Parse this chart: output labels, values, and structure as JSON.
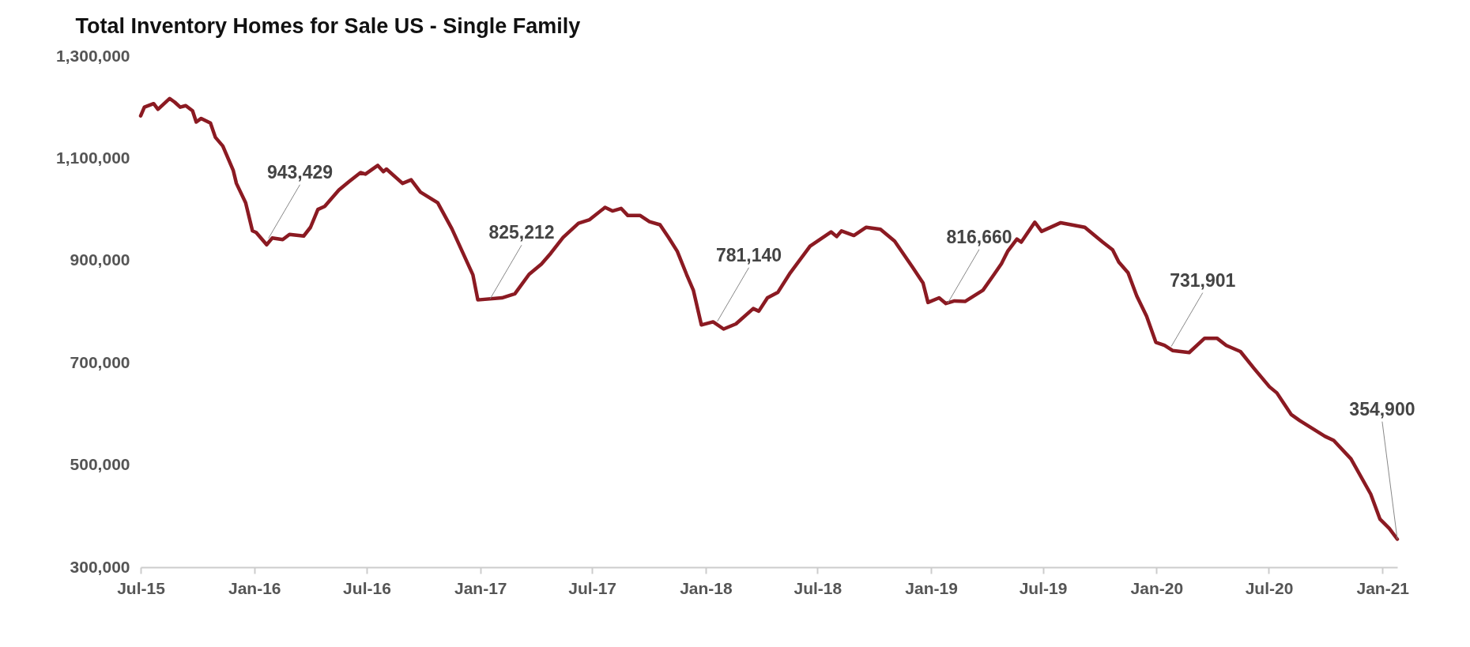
{
  "chart_data": {
    "type": "line",
    "title": "Total Inventory Homes for Sale US - Single Family",
    "x": [
      "2015-07-01",
      "2015-07-07",
      "2015-07-22",
      "2015-07-29",
      "2015-08-17",
      "2015-08-25",
      "2015-09-03",
      "2015-09-12",
      "2015-09-23",
      "2015-09-29",
      "2015-10-07",
      "2015-10-22",
      "2015-10-30",
      "2015-11-11",
      "2015-11-28",
      "2015-12-03",
      "2015-12-18",
      "2015-12-29",
      "2016-01-04",
      "2016-01-21",
      "2016-01-30",
      "2016-02-16",
      "2016-02-27",
      "2016-03-21",
      "2016-04-01",
      "2016-04-13",
      "2016-04-24",
      "2016-05-17",
      "2016-06-03",
      "2016-06-21",
      "2016-06-29",
      "2016-07-19",
      "2016-07-28",
      "2016-08-02",
      "2016-08-28",
      "2016-09-11",
      "2016-09-26",
      "2016-10-24",
      "2016-11-16",
      "2016-12-20",
      "2016-12-28",
      "2017-02-05",
      "2017-02-26",
      "2017-03-21",
      "2017-04-10",
      "2017-04-25",
      "2017-05-15",
      "2017-06-09",
      "2017-06-27",
      "2017-07-22",
      "2017-08-03",
      "2017-08-17",
      "2017-08-28",
      "2017-09-17",
      "2017-10-02",
      "2017-10-19",
      "2017-11-02",
      "2017-11-16",
      "2017-12-01",
      "2017-12-12",
      "2017-12-25",
      "2018-01-13",
      "2018-01-30",
      "2018-02-19",
      "2018-03-19",
      "2018-03-28",
      "2018-04-11",
      "2018-04-28",
      "2018-05-18",
      "2018-06-19",
      "2018-07-23",
      "2018-08-01",
      "2018-08-09",
      "2018-08-29",
      "2018-09-18",
      "2018-10-11",
      "2018-11-03",
      "2018-12-02",
      "2018-12-19",
      "2018-12-27",
      "2019-01-14",
      "2019-01-25",
      "2019-02-08",
      "2019-02-25",
      "2019-03-26",
      "2019-04-12",
      "2019-04-25",
      "2019-05-05",
      "2019-05-20",
      "2019-05-27",
      "2019-06-18",
      "2019-06-29",
      "2019-07-30",
      "2019-09-07",
      "2019-09-12",
      "2019-10-06",
      "2019-10-22",
      "2019-11-01",
      "2019-11-16",
      "2019-11-30",
      "2019-12-16",
      "2019-12-31",
      "2020-01-14",
      "2020-01-27",
      "2020-02-23",
      "2020-03-19",
      "2020-04-08",
      "2020-04-23",
      "2020-05-16",
      "2020-06-07",
      "2020-07-02",
      "2020-07-14",
      "2020-08-06",
      "2020-08-20",
      "2020-09-30",
      "2020-10-14",
      "2020-11-11",
      "2020-12-13",
      "2020-12-28",
      "2021-01-12",
      "2021-01-25"
    ],
    "series": [
      {
        "color": "#8b1a22",
        "values": [
          1183000,
          1200000,
          1207000,
          1196000,
          1217000,
          1210000,
          1200000,
          1203000,
          1193000,
          1171000,
          1178000,
          1169000,
          1141000,
          1124000,
          1076000,
          1051000,
          1013000,
          958000,
          955000,
          931000,
          944000,
          941000,
          951000,
          948000,
          965000,
          1000000,
          1006000,
          1038000,
          1055000,
          1072000,
          1069000,
          1086000,
          1074000,
          1079000,
          1051000,
          1058000,
          1034000,
          1013000,
          962000,
          872000,
          823000,
          827000,
          835000,
          873000,
          893000,
          914000,
          945000,
          973000,
          980000,
          1004000,
          997000,
          1002000,
          988000,
          988000,
          976000,
          970000,
          945000,
          918000,
          873000,
          842000,
          774000,
          780000,
          766000,
          776000,
          806000,
          801000,
          827000,
          838000,
          876000,
          928000,
          956000,
          947000,
          958000,
          949000,
          965000,
          961000,
          938000,
          887000,
          856000,
          818000,
          827000,
          816000,
          821000,
          820000,
          842000,
          871000,
          894000,
          918000,
          942000,
          936000,
          975000,
          957000,
          974000,
          965000,
          960000,
          936000,
          921000,
          897000,
          876000,
          831000,
          791000,
          740000,
          734000,
          724000,
          720000,
          748000,
          748000,
          734000,
          722000,
          689000,
          653000,
          641000,
          599000,
          587000,
          556000,
          548000,
          512000,
          443000,
          394000,
          376000,
          354900
        ]
      }
    ],
    "xlim": [
      "2015-07-01",
      "2021-01-25"
    ],
    "xticks": [
      {
        "value": "2015-07-01",
        "label": "Jul-15"
      },
      {
        "value": "2016-01-01",
        "label": "Jan-16"
      },
      {
        "value": "2016-07-01",
        "label": "Jul-16"
      },
      {
        "value": "2017-01-01",
        "label": "Jan-17"
      },
      {
        "value": "2017-07-01",
        "label": "Jul-17"
      },
      {
        "value": "2018-01-01",
        "label": "Jan-18"
      },
      {
        "value": "2018-07-01",
        "label": "Jul-18"
      },
      {
        "value": "2019-01-01",
        "label": "Jan-19"
      },
      {
        "value": "2019-07-01",
        "label": "Jul-19"
      },
      {
        "value": "2020-01-01",
        "label": "Jan-20"
      },
      {
        "value": "2020-07-01",
        "label": "Jul-20"
      },
      {
        "value": "2021-01-01",
        "label": "Jan-21"
      }
    ],
    "ylim": [
      300000,
      1300000
    ],
    "yticks": [
      {
        "value": 300000,
        "label": "300,000"
      },
      {
        "value": 500000,
        "label": "500,000"
      },
      {
        "value": 700000,
        "label": "700,000"
      },
      {
        "value": 900000,
        "label": "900,000"
      },
      {
        "value": 1100000,
        "label": "1,100,000"
      },
      {
        "value": 1300000,
        "label": "1,300,000"
      }
    ],
    "annotations": [
      {
        "text": "943,429",
        "x": "2016-01-24",
        "y": 943429
      },
      {
        "text": "825,212",
        "x": "2017-01-17",
        "y": 825212
      },
      {
        "text": "781,140",
        "x": "2018-01-20",
        "y": 781140
      },
      {
        "text": "816,660",
        "x": "2019-01-28",
        "y": 816660
      },
      {
        "text": "731,901",
        "x": "2020-01-25",
        "y": 731901
      },
      {
        "text": "354,900",
        "x": "2021-01-25",
        "y": 354900
      }
    ],
    "grid": false,
    "marker": "none",
    "line_style": "solid"
  }
}
